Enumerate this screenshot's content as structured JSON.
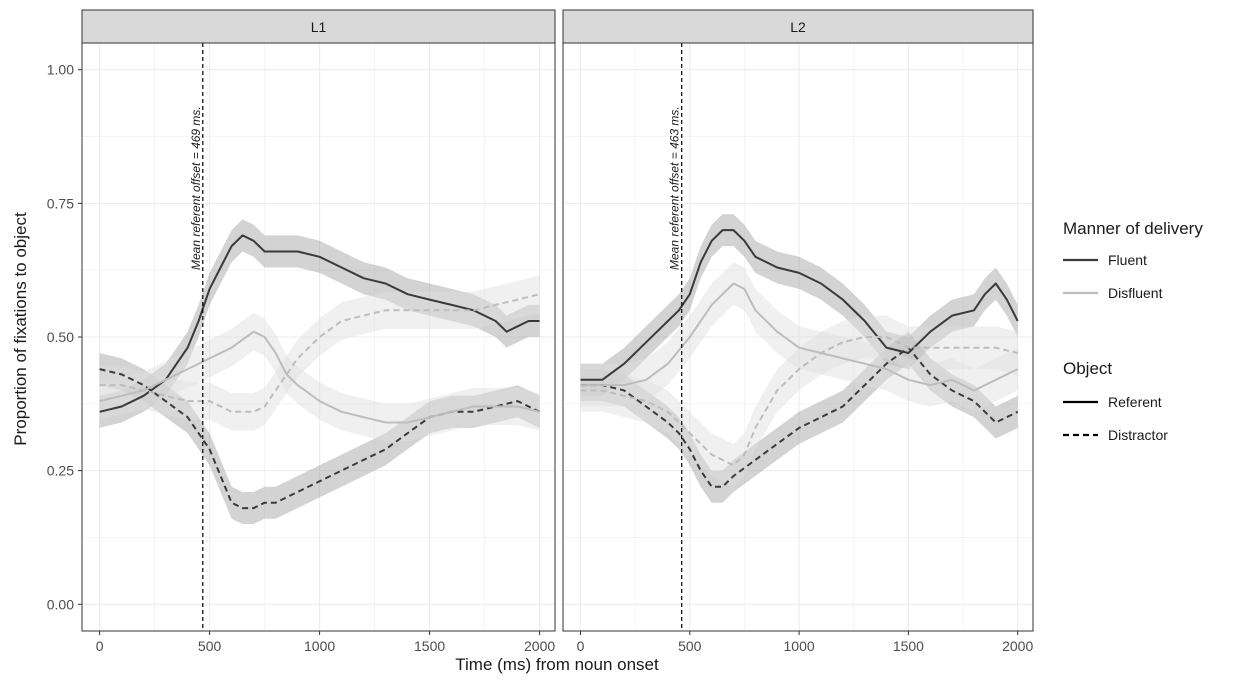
{
  "chart_data": {
    "type": "line",
    "xlabel": "Time (ms) from noun onset",
    "ylabel": "Proportion of fixations to object",
    "xlim": [
      -80,
      2070
    ],
    "ylim": [
      -0.05,
      1.05
    ],
    "x_ticks": [
      0,
      500,
      1000,
      1500,
      2000
    ],
    "y_ticks": [
      0.0,
      0.25,
      0.5,
      0.75,
      1.0
    ],
    "y_tick_labels": [
      "0.00",
      "0.25",
      "0.50",
      "0.75",
      "1.00"
    ],
    "grid": true,
    "legend": {
      "position": "right",
      "groups": [
        {
          "title": "Manner of delivery",
          "items": [
            {
              "label": "Fluent",
              "color": "#3a3a3a",
              "dash": "solid"
            },
            {
              "label": "Disfluent",
              "color": "#bdbdbd",
              "dash": "solid"
            }
          ]
        },
        {
          "title": "Object",
          "items": [
            {
              "label": "Referent",
              "color": "#000000",
              "dash": "solid"
            },
            {
              "label": "Distractor",
              "color": "#000000",
              "dash": "dashed"
            }
          ]
        }
      ]
    },
    "facets": [
      {
        "label": "L1",
        "vline": {
          "x": 469,
          "label": "Mean referent offset = 469 ms."
        },
        "series": [
          {
            "name": "Fluent Referent",
            "color": "#3a3a3a",
            "dash": "solid",
            "band": 0.03,
            "x": [
              0,
              100,
              200,
              300,
              400,
              450,
              500,
              550,
              600,
              650,
              700,
              750,
              800,
              900,
              1000,
              1100,
              1200,
              1300,
              1400,
              1500,
              1600,
              1700,
              1800,
              1850,
              1900,
              1950,
              2000
            ],
            "y": [
              0.36,
              0.37,
              0.39,
              0.42,
              0.48,
              0.53,
              0.59,
              0.63,
              0.67,
              0.69,
              0.68,
              0.66,
              0.66,
              0.66,
              0.65,
              0.63,
              0.61,
              0.6,
              0.58,
              0.57,
              0.56,
              0.55,
              0.53,
              0.51,
              0.52,
              0.53,
              0.53
            ]
          },
          {
            "name": "Fluent Distractor",
            "color": "#3a3a3a",
            "dash": "dashed",
            "band": 0.03,
            "x": [
              0,
              100,
              200,
              300,
              400,
              450,
              500,
              550,
              600,
              650,
              700,
              750,
              800,
              900,
              1000,
              1100,
              1200,
              1300,
              1400,
              1500,
              1600,
              1700,
              1800,
              1900,
              2000
            ],
            "y": [
              0.44,
              0.43,
              0.41,
              0.38,
              0.35,
              0.32,
              0.29,
              0.24,
              0.19,
              0.18,
              0.18,
              0.19,
              0.19,
              0.21,
              0.23,
              0.25,
              0.27,
              0.29,
              0.32,
              0.35,
              0.36,
              0.36,
              0.37,
              0.38,
              0.36
            ]
          },
          {
            "name": "Disfluent Referent",
            "color": "#bdbdbd",
            "dash": "solid",
            "band": 0.035,
            "x": [
              0,
              100,
              200,
              300,
              400,
              500,
              600,
              700,
              750,
              800,
              850,
              900,
              1000,
              1100,
              1200,
              1300,
              1400,
              1500,
              1600,
              1700,
              1800,
              1900,
              2000
            ],
            "y": [
              0.38,
              0.39,
              0.4,
              0.42,
              0.44,
              0.46,
              0.48,
              0.51,
              0.5,
              0.47,
              0.43,
              0.41,
              0.38,
              0.36,
              0.35,
              0.34,
              0.34,
              0.35,
              0.36,
              0.37,
              0.37,
              0.37,
              0.36
            ]
          },
          {
            "name": "Disfluent Distractor",
            "color": "#bdbdbd",
            "dash": "dashed",
            "band": 0.035,
            "x": [
              0,
              100,
              200,
              300,
              400,
              500,
              600,
              700,
              750,
              800,
              850,
              900,
              1000,
              1100,
              1200,
              1300,
              1400,
              1500,
              1600,
              1700,
              1800,
              1900,
              2000
            ],
            "y": [
              0.41,
              0.41,
              0.4,
              0.39,
              0.38,
              0.38,
              0.36,
              0.36,
              0.37,
              0.4,
              0.43,
              0.46,
              0.5,
              0.53,
              0.54,
              0.55,
              0.55,
              0.55,
              0.55,
              0.55,
              0.56,
              0.57,
              0.58
            ]
          }
        ]
      },
      {
        "label": "L2",
        "vline": {
          "x": 463,
          "label": "Mean referent offset = 463 ms."
        },
        "series": [
          {
            "name": "Fluent Referent",
            "color": "#3a3a3a",
            "dash": "solid",
            "band": 0.03,
            "x": [
              0,
              100,
              200,
              300,
              400,
              450,
              500,
              550,
              600,
              650,
              700,
              750,
              800,
              900,
              1000,
              1100,
              1200,
              1300,
              1400,
              1500,
              1600,
              1700,
              1800,
              1850,
              1900,
              1950,
              2000
            ],
            "y": [
              0.42,
              0.42,
              0.45,
              0.49,
              0.53,
              0.55,
              0.58,
              0.64,
              0.68,
              0.7,
              0.7,
              0.68,
              0.65,
              0.63,
              0.62,
              0.6,
              0.57,
              0.53,
              0.48,
              0.47,
              0.51,
              0.54,
              0.55,
              0.58,
              0.6,
              0.57,
              0.53
            ]
          },
          {
            "name": "Fluent Distractor",
            "color": "#3a3a3a",
            "dash": "dashed",
            "band": 0.03,
            "x": [
              0,
              100,
              200,
              300,
              400,
              450,
              500,
              550,
              600,
              650,
              700,
              800,
              900,
              1000,
              1100,
              1200,
              1300,
              1400,
              1500,
              1600,
              1700,
              1800,
              1900,
              2000
            ],
            "y": [
              0.41,
              0.41,
              0.4,
              0.37,
              0.34,
              0.32,
              0.29,
              0.25,
              0.22,
              0.22,
              0.24,
              0.27,
              0.3,
              0.33,
              0.35,
              0.37,
              0.41,
              0.45,
              0.48,
              0.43,
              0.4,
              0.38,
              0.34,
              0.36
            ]
          },
          {
            "name": "Disfluent Referent",
            "color": "#bdbdbd",
            "dash": "solid",
            "band": 0.04,
            "x": [
              0,
              100,
              200,
              300,
              400,
              500,
              600,
              700,
              750,
              800,
              900,
              1000,
              1100,
              1200,
              1300,
              1400,
              1500,
              1600,
              1700,
              1800,
              1900,
              2000
            ],
            "y": [
              0.41,
              0.41,
              0.41,
              0.42,
              0.45,
              0.5,
              0.56,
              0.6,
              0.59,
              0.55,
              0.51,
              0.48,
              0.47,
              0.46,
              0.45,
              0.44,
              0.42,
              0.41,
              0.42,
              0.4,
              0.42,
              0.44
            ]
          },
          {
            "name": "Disfluent Distractor",
            "color": "#bdbdbd",
            "dash": "dashed",
            "band": 0.04,
            "x": [
              0,
              100,
              200,
              300,
              400,
              500,
              600,
              700,
              750,
              800,
              900,
              1000,
              1100,
              1200,
              1300,
              1400,
              1500,
              1600,
              1700,
              1800,
              1900,
              2000
            ],
            "y": [
              0.4,
              0.4,
              0.39,
              0.38,
              0.36,
              0.32,
              0.28,
              0.26,
              0.28,
              0.33,
              0.4,
              0.44,
              0.47,
              0.49,
              0.5,
              0.5,
              0.48,
              0.48,
              0.48,
              0.48,
              0.48,
              0.47
            ]
          }
        ]
      }
    ]
  }
}
